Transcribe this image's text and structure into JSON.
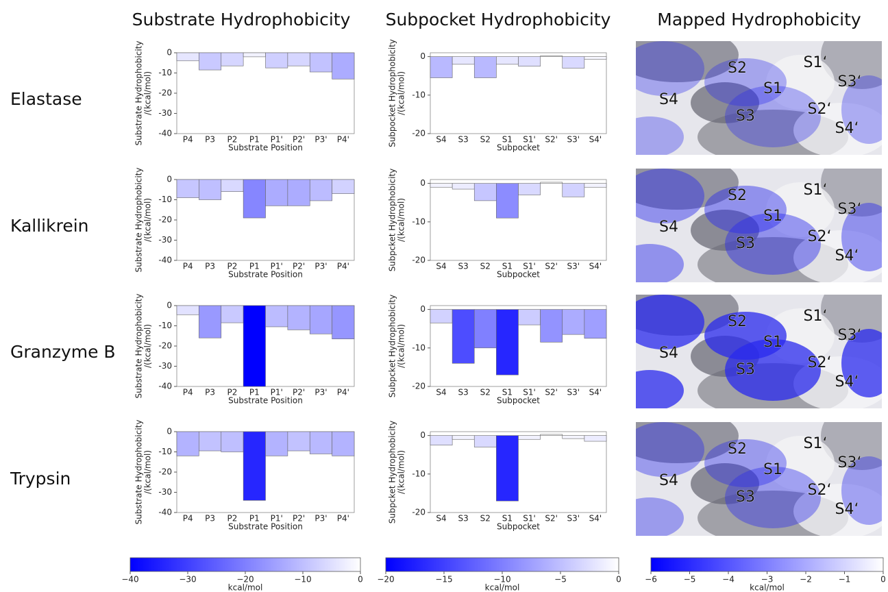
{
  "column_titles": [
    "Substrate Hydrophobicity",
    "Subpocket Hydrophobicity",
    "Mapped Hydrophobicity"
  ],
  "row_labels": [
    "Elastase",
    "Kallikrein",
    "Granzyme B",
    "Trypsin"
  ],
  "chart_data": [
    {
      "type": "bar",
      "ylabel": [
        "Substrate Hydrophobicity",
        "/(kcal/mol)"
      ],
      "xlabel": "Substrate Position",
      "categories": [
        "P4",
        "P3",
        "P2",
        "P1",
        "P1'",
        "P2'",
        "P3'",
        "P4'"
      ],
      "values": [
        -4,
        -8.5,
        -6.5,
        -2,
        -7.5,
        -6.5,
        -9.5,
        -13
      ],
      "ylim": [
        -40,
        0
      ],
      "yticks": [
        -40,
        -30,
        -20,
        -10,
        0
      ]
    },
    {
      "type": "bar",
      "ylabel": [
        "Subpocket Hydrophobicity",
        "/(kcal/mol)"
      ],
      "xlabel": "Subpocket",
      "categories": [
        "S4",
        "S3",
        "S2",
        "S1",
        "S1'",
        "S2'",
        "S3'",
        "S4'"
      ],
      "values": [
        -5.5,
        -2,
        -5.5,
        -2,
        -2.5,
        0.2,
        -3,
        -0.7
      ],
      "ylim": [
        -20,
        1
      ],
      "yticks": [
        -20,
        -10,
        0
      ]
    },
    {
      "type": "bar",
      "ylabel": [
        "Substrate Hydrophobicity",
        "/(kcal/mol)"
      ],
      "xlabel": "Substrate Position",
      "categories": [
        "P4",
        "P3",
        "P2",
        "P1",
        "P1'",
        "P2'",
        "P3'",
        "P4'"
      ],
      "values": [
        -9,
        -10,
        -6,
        -19,
        -13,
        -13,
        -10.5,
        -7
      ],
      "ylim": [
        -40,
        0
      ],
      "yticks": [
        -40,
        -30,
        -20,
        -10,
        0
      ]
    },
    {
      "type": "bar",
      "ylabel": [
        "Subpcket Hydrophobicity",
        "/(kcal/mol)"
      ],
      "xlabel": "Subpocket",
      "categories": [
        "S4",
        "S3",
        "S2",
        "S1",
        "S1'",
        "S2'",
        "S3'",
        "S4'"
      ],
      "values": [
        -1,
        -1.5,
        -4.5,
        -9,
        -3,
        0.3,
        -3.5,
        -1
      ],
      "ylim": [
        -20,
        1
      ],
      "yticks": [
        -20,
        -10,
        0
      ]
    },
    {
      "type": "bar",
      "ylabel": [
        "Substrate Hydrophobicity",
        "/(kcal/mol)"
      ],
      "xlabel": "Substrate Position",
      "categories": [
        "P4",
        "P3",
        "P2",
        "P1",
        "P1'",
        "P2'",
        "P3'",
        "P4'"
      ],
      "values": [
        -4.5,
        -16,
        -8.5,
        -40,
        -10.5,
        -12,
        -14,
        -16.5
      ],
      "ylim": [
        -40,
        0
      ],
      "yticks": [
        -40,
        -30,
        -20,
        -10,
        0
      ]
    },
    {
      "type": "bar",
      "ylabel": [
        "Subpcket Hydrophobicity",
        "/(kcal/mol)"
      ],
      "xlabel": "Subpocket",
      "categories": [
        "S4",
        "S3",
        "S2",
        "S1",
        "S1'",
        "S2'",
        "S3'",
        "S4'"
      ],
      "values": [
        -3.5,
        -14,
        -10,
        -17,
        -4,
        -8.5,
        -6.5,
        -7.5
      ],
      "ylim": [
        -20,
        1
      ],
      "yticks": [
        -20,
        -10,
        0
      ]
    },
    {
      "type": "bar",
      "ylabel": [
        "Substrate Hydrophobicity",
        "/(kcal/mol)"
      ],
      "xlabel": "Substrate Position",
      "categories": [
        "P4",
        "P3",
        "P2",
        "P1",
        "P1'",
        "P2'",
        "P3'",
        "P4'"
      ],
      "values": [
        -12,
        -9.5,
        -10,
        -34,
        -12,
        -9.5,
        -11,
        -12
      ],
      "ylim": [
        -40,
        0
      ],
      "yticks": [
        -40,
        -30,
        -20,
        -10,
        0
      ]
    },
    {
      "type": "bar",
      "ylabel": [
        "Subpcket Hydrophobicity",
        "/(kcal/mol)"
      ],
      "xlabel": "Subpocket",
      "categories": [
        "S4",
        "S3",
        "S2",
        "S1",
        "S1'",
        "S2'",
        "S3'",
        "S4'"
      ],
      "values": [
        -2.5,
        -1,
        -3,
        -17,
        -1,
        0.3,
        -0.8,
        -1.5
      ],
      "ylim": [
        -20,
        1
      ],
      "yticks": [
        -20,
        -10,
        0
      ]
    },
    {
      "type": "colorbar",
      "colors": [
        "#0000ff",
        "#ffffff"
      ],
      "xlabel": "kcal/mol",
      "xlim": [
        -40,
        0
      ],
      "xticks": [
        {
          "value": -40,
          "label": "−40"
        },
        {
          "value": -30,
          "label": "−30"
        },
        {
          "value": -20,
          "label": "−20"
        },
        {
          "value": -10,
          "label": "−10"
        },
        0
      ]
    },
    {
      "type": "colorbar",
      "colors": [
        "#0000ff",
        "#ffffff"
      ],
      "xlabel": "kcal/mol",
      "xlim": [
        -20,
        0
      ],
      "xticks": [
        {
          "value": -20,
          "label": "−20"
        },
        {
          "value": -15,
          "label": "−15"
        },
        {
          "value": -10,
          "label": "−10"
        },
        {
          "value": -5,
          "label": "−5"
        },
        0
      ]
    },
    {
      "type": "colorbar",
      "colors": [
        "#0000ff",
        "#ffffff"
      ],
      "xlabel": "kcal/mol",
      "xlim": [
        -6,
        0
      ],
      "xticks": [
        {
          "value": -6,
          "label": "−6"
        },
        {
          "value": -5,
          "label": "−5"
        },
        {
          "value": -4,
          "label": "−4"
        },
        {
          "value": -3,
          "label": "−3"
        },
        {
          "value": -2,
          "label": "−2"
        },
        {
          "value": -1,
          "label": "−1"
        },
        0
      ]
    }
  ],
  "maps": [
    [
      "S4",
      "S2",
      "S1",
      "S1‘",
      "S3‘",
      "S2‘",
      "S3",
      "S4‘"
    ],
    [
      "S4",
      "S2",
      "S1",
      "S1‘",
      "S3‘",
      "S2‘",
      "S3",
      "S4‘"
    ],
    [
      "S4",
      "S2",
      "S1",
      "S1‘",
      "S3‘",
      "S2‘",
      "S3",
      "S4‘"
    ],
    [
      "S4",
      "S2",
      "S1",
      "S1‘",
      "S3‘",
      "S2‘",
      "S3",
      "S4‘"
    ]
  ]
}
